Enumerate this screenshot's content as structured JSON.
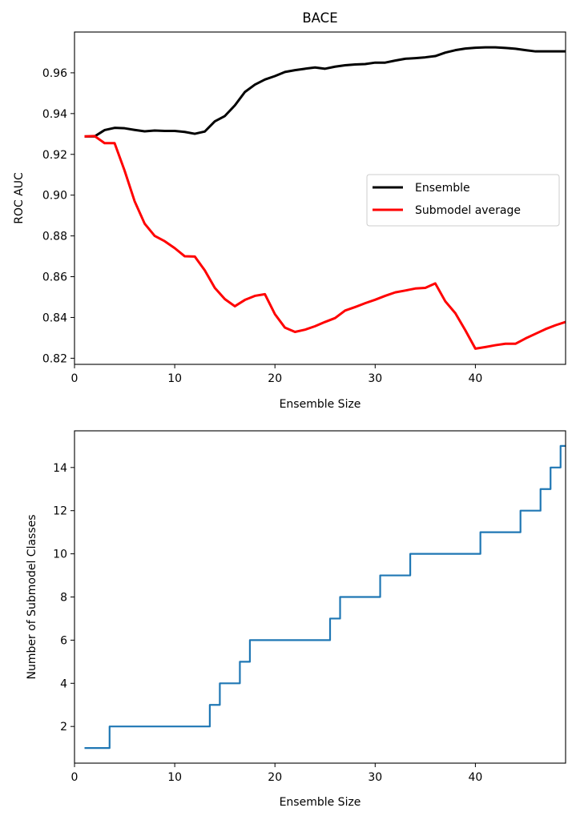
{
  "chart_data": [
    {
      "type": "line",
      "title": "BACE",
      "xlabel": "Ensemble Size",
      "ylabel": "ROC AUC",
      "xlim": [
        0,
        49
      ],
      "ylim": [
        0.817,
        0.98
      ],
      "xticks": [
        0,
        10,
        20,
        30,
        40
      ],
      "xtick_labels": [
        "0",
        "10",
        "20",
        "30",
        "40"
      ],
      "yticks": [
        0.82,
        0.84,
        0.86,
        0.88,
        0.9,
        0.92,
        0.94,
        0.96
      ],
      "ytick_labels": [
        "0.82",
        "0.84",
        "0.86",
        "0.88",
        "0.90",
        "0.92",
        "0.94",
        "0.96"
      ],
      "grid": false,
      "legend": {
        "placement": "center-right"
      },
      "x": [
        1,
        2,
        3,
        4,
        5,
        6,
        7,
        8,
        9,
        10,
        11,
        12,
        13,
        14,
        15,
        16,
        17,
        18,
        19,
        20,
        21,
        22,
        23,
        24,
        25,
        26,
        27,
        28,
        29,
        30,
        31,
        32,
        33,
        34,
        35,
        36,
        37,
        38,
        39,
        40,
        41,
        42,
        43,
        44,
        45,
        46,
        47,
        48,
        49
      ],
      "series": [
        {
          "name": "Ensemble",
          "color": "#000000",
          "values": [
            0.9288,
            0.9288,
            0.9319,
            0.933,
            0.9328,
            0.932,
            0.9313,
            0.9317,
            0.9315,
            0.9315,
            0.931,
            0.9301,
            0.9312,
            0.9362,
            0.9388,
            0.944,
            0.9506,
            0.9542,
            0.9567,
            0.9584,
            0.9604,
            0.9613,
            0.962,
            0.9626,
            0.962,
            0.963,
            0.9637,
            0.9641,
            0.9643,
            0.965,
            0.965,
            0.966,
            0.9669,
            0.9672,
            0.9676,
            0.9682,
            0.9699,
            0.9711,
            0.9719,
            0.9723,
            0.9725,
            0.9725,
            0.9722,
            0.9718,
            0.9711,
            0.9705,
            0.9705,
            0.9705,
            0.9705
          ]
        },
        {
          "name": "Submodel average",
          "color": "#ff0000",
          "values": [
            0.9288,
            0.929,
            0.9255,
            0.9255,
            0.912,
            0.897,
            0.886,
            0.88,
            0.8774,
            0.874,
            0.87,
            0.8699,
            0.8631,
            0.8545,
            0.849,
            0.8455,
            0.8486,
            0.8506,
            0.8514,
            0.8416,
            0.835,
            0.8329,
            0.834,
            0.8357,
            0.8378,
            0.8397,
            0.8434,
            0.8451,
            0.847,
            0.8487,
            0.8506,
            0.8523,
            0.8532,
            0.8542,
            0.8545,
            0.8567,
            0.8479,
            0.8421,
            0.8337,
            0.8247,
            0.8255,
            0.8264,
            0.8271,
            0.8271,
            0.8297,
            0.832,
            0.8343,
            0.8362,
            0.8378
          ]
        }
      ]
    },
    {
      "type": "line",
      "drawstyle": "steps-mid",
      "title": "",
      "xlabel": "Ensemble Size",
      "ylabel": "Number of Submodel Classes",
      "xlim": [
        0,
        49
      ],
      "ylim": [
        0.3,
        15.7
      ],
      "xticks": [
        0,
        10,
        20,
        30,
        40
      ],
      "xtick_labels": [
        "0",
        "10",
        "20",
        "30",
        "40"
      ],
      "yticks": [
        2,
        4,
        6,
        8,
        10,
        12,
        14
      ],
      "ytick_labels": [
        "2",
        "4",
        "6",
        "8",
        "10",
        "12",
        "14"
      ],
      "grid": false,
      "x": [
        1,
        2,
        3,
        4,
        5,
        6,
        7,
        8,
        9,
        10,
        11,
        12,
        13,
        14,
        15,
        16,
        17,
        18,
        19,
        20,
        21,
        22,
        23,
        24,
        25,
        26,
        27,
        28,
        29,
        30,
        31,
        32,
        33,
        34,
        35,
        36,
        37,
        38,
        39,
        40,
        41,
        42,
        43,
        44,
        45,
        46,
        47,
        48,
        49
      ],
      "series": [
        {
          "name": "Number of Submodel Classes",
          "color": "#1f77b4",
          "values": [
            1,
            1,
            1,
            2,
            2,
            2,
            2,
            2,
            2,
            2,
            2,
            2,
            2,
            3,
            4,
            4,
            5,
            6,
            6,
            6,
            6,
            6,
            6,
            6,
            6,
            7,
            8,
            8,
            8,
            8,
            9,
            9,
            9,
            10,
            10,
            10,
            10,
            10,
            10,
            10,
            11,
            11,
            11,
            11,
            12,
            12,
            13,
            14,
            15
          ]
        }
      ]
    }
  ]
}
